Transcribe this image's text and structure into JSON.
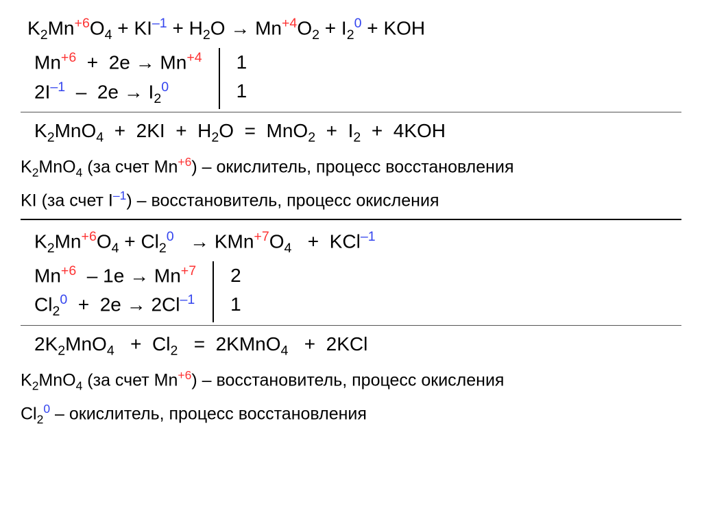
{
  "eq1": {
    "unbalanced_html": "K<span class='sub'>2</span>Mn<span class='sup red'>+6</span>O<span class='sub'>4</span> + KI<span class='sup blue'>–1</span> + H<span class='sub'>2</span>O → Mn<span class='sup red'>+4</span>O<span class='sub'>2</span> + I<span class='sub'>2</span><span class='sup blue'>0</span>  + KOH",
    "half1_html": "Mn<span class='sup red'>+6</span>&nbsp;&nbsp;+&nbsp;&nbsp;2e → Mn<span class='sup red'>+4</span>",
    "half2_html": "2I<span class='sup blue'>–1</span>&nbsp;&nbsp;–&nbsp;&nbsp;2e → I<span class='sub'>2</span><span class='sup blue'>0</span>",
    "coef1": "1",
    "coef2": "1",
    "balanced_html": "K<span class='sub'>2</span>MnO<span class='sub'>4</span>&nbsp;&nbsp;+&nbsp;&nbsp;2KI&nbsp;&nbsp;+&nbsp;&nbsp;H<span class='sub'>2</span>O&nbsp;&nbsp;=&nbsp;&nbsp;MnO<span class='sub'>2</span>&nbsp;&nbsp;+&nbsp;&nbsp;I<span class='sub'>2</span>&nbsp;&nbsp;+&nbsp;&nbsp;4KOH",
    "explain1_html": "K<span class='sub'>2</span>MnO<span class='sub'>4</span> (за счет Mn<span class='sup red'>+6</span>) – окислитель, процесс восстановления",
    "explain2_html": "KI (за счет I<span class='sup blue'>–1</span>) – восстановитель, процесс окисления"
  },
  "eq2": {
    "unbalanced_html": "K<span class='sub'>2</span>Mn<span class='sup red'>+6</span>O<span class='sub'>4</span> + Cl<span class='sub'>2</span><span class='sup blue'>0</span>&nbsp;&nbsp;&nbsp;→ KMn<span class='sup red'>+7</span>O<span class='sub'>4</span>&nbsp;&nbsp;&nbsp;+&nbsp;&nbsp;KCl<span class='sup blue'>–1</span>",
    "half1_html": "Mn<span class='sup red'>+6</span>&nbsp;&nbsp;–&nbsp;1e → Mn<span class='sup red'>+7</span>",
    "half2_html": "Cl<span class='sub'>2</span><span class='sup blue'>0</span>&nbsp;&nbsp;+&nbsp;&nbsp;2e → 2Cl<span class='sup blue'>–1</span>",
    "coef1": "2",
    "coef2": "1",
    "balanced_html": "2K<span class='sub'>2</span>MnO<span class='sub'>4</span>&nbsp;&nbsp;&nbsp;+&nbsp;&nbsp;Cl<span class='sub'>2</span>&nbsp;&nbsp;&nbsp;=&nbsp;&nbsp;2KMnO<span class='sub'>4</span>&nbsp;&nbsp;&nbsp;+&nbsp;&nbsp;2KCl",
    "explain1_html": "K<span class='sub'>2</span>MnO<span class='sub'>4</span> (за счет Mn<span class='sup red'>+6</span>) – восстановитель, процесс окисления",
    "explain2_html": "Cl<span class='sub'>2</span><span class='sup blue'>0</span> – окислитель, процесс восстановления"
  }
}
